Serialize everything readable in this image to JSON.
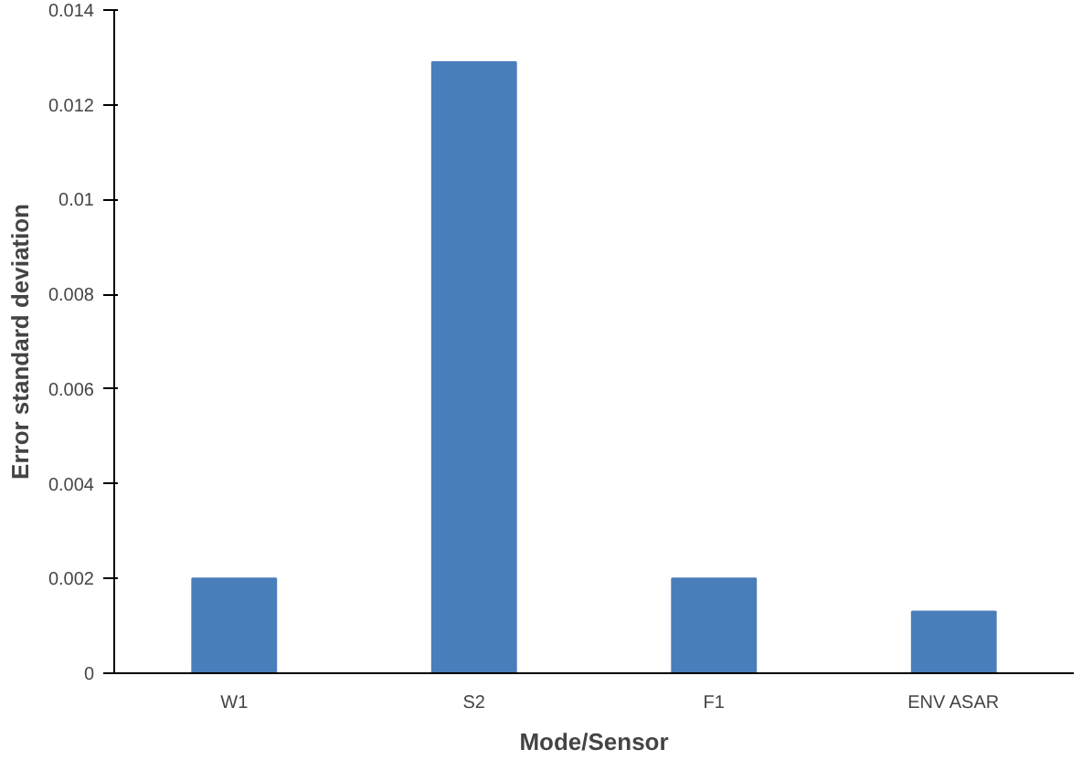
{
  "chart_data": {
    "type": "bar",
    "xlabel": "Mode/Sensor",
    "ylabel": "Error standard deviation",
    "categories": [
      "W1",
      "S2",
      "F1",
      "ENV ASAR"
    ],
    "values": [
      0.002,
      0.0129,
      0.002,
      0.0013
    ],
    "color": "#4a7ebb",
    "ylim": [
      0,
      0.014
    ],
    "yticks": [
      0,
      0.002,
      0.004,
      0.006,
      0.008,
      0.01,
      0.012,
      0.014
    ],
    "grid": false
  }
}
